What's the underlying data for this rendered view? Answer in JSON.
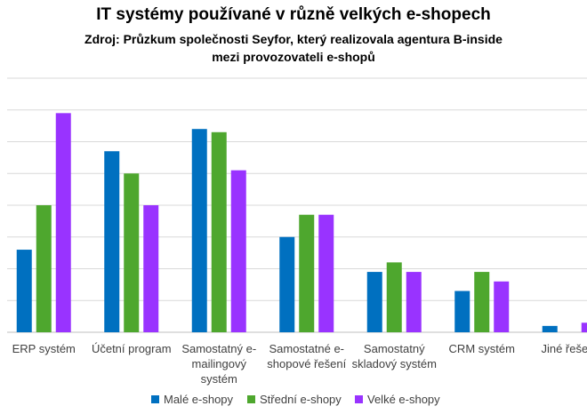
{
  "chart_data": {
    "type": "bar",
    "title": "IT systémy používané v různě velkých e-shopech",
    "subtitle": "Zdroj: Průzkum společnosti Seyfor, který realizovala agentura B-inside mezi provozovateli e-shopů",
    "categories": [
      "ERP systém",
      "Účetní program",
      "Samostatný e-mailingový systém",
      "Samostatné e-shopové řešení",
      "Samostatný skladový systém",
      "CRM systém",
      "Jiné řešení"
    ],
    "series": [
      {
        "name": "Malé e-shopy",
        "color": "#0070c0",
        "values": [
          26,
          57,
          64,
          30,
          19,
          13,
          2
        ]
      },
      {
        "name": "Střední e-shopy",
        "color": "#4ea72e",
        "values": [
          40,
          50,
          63,
          37,
          22,
          19,
          0
        ]
      },
      {
        "name": "Velké e-shopy",
        "color": "#9933ff",
        "values": [
          69,
          40,
          51,
          37,
          19,
          16,
          3
        ]
      }
    ],
    "ylim": [
      0,
      80
    ],
    "yticks": [
      0,
      10,
      20,
      30,
      40,
      50,
      60,
      70,
      80
    ],
    "grid": true
  }
}
